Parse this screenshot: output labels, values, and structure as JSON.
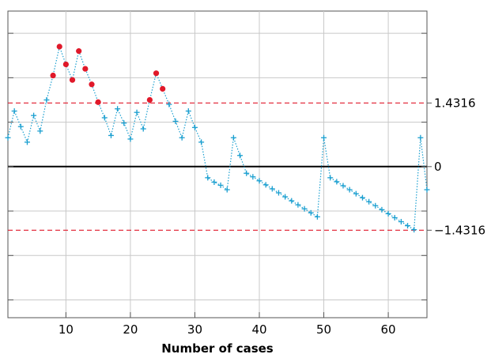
{
  "chart_data": {
    "type": "scatter",
    "title": "",
    "xlabel": "Number of cases",
    "ylabel": "",
    "xlim": [
      1,
      66
    ],
    "ylim": [
      -3.4,
      3.5
    ],
    "grid": true,
    "x_ticks": [
      10,
      20,
      30,
      40,
      50,
      60
    ],
    "x_tick_labels": [
      "10",
      "20",
      "30",
      "40",
      "50",
      "60"
    ],
    "reference_lines": [
      {
        "value": 1.4316,
        "label": "1.4316",
        "style": "dashed",
        "color": "#e0192a"
      },
      {
        "value": 0,
        "label": "0",
        "style": "solid",
        "color": "#000000"
      },
      {
        "value": -1.4316,
        "label": "−1.4316",
        "style": "dashed",
        "color": "#e0192a"
      }
    ],
    "series": [
      {
        "color": "#1a9fd0",
        "marker": "plus",
        "line_style": "dotted",
        "x": [
          1,
          2,
          3,
          4,
          5,
          6,
          7,
          8,
          9,
          10,
          11,
          12,
          13,
          14,
          15,
          16,
          17,
          18,
          19,
          20,
          21,
          22,
          23,
          24,
          25,
          26,
          27,
          28,
          29,
          30,
          31,
          32,
          33,
          34,
          35,
          36,
          37,
          38,
          39,
          40,
          41,
          42,
          43,
          44,
          45,
          46,
          47,
          48,
          49,
          50,
          51,
          52,
          53,
          54,
          55,
          56,
          57,
          58,
          59,
          60,
          61,
          62,
          63,
          64,
          65,
          66
        ],
        "y": [
          0.65,
          1.25,
          0.9,
          0.55,
          1.15,
          0.8,
          1.5,
          2.05,
          2.7,
          2.3,
          1.95,
          2.6,
          2.2,
          1.85,
          1.45,
          1.1,
          0.7,
          1.3,
          0.98,
          0.62,
          1.22,
          0.85,
          1.5,
          2.1,
          1.75,
          1.4,
          1.02,
          0.65,
          1.25,
          0.88,
          0.55,
          -0.25,
          -0.35,
          -0.42,
          -0.52,
          0.65,
          0.25,
          -0.15,
          -0.23,
          -0.32,
          -0.41,
          -0.5,
          -0.59,
          -0.68,
          -0.77,
          -0.86,
          -0.95,
          -1.04,
          -1.13,
          0.65,
          -0.25,
          -0.34,
          -0.43,
          -0.52,
          -0.61,
          -0.7,
          -0.79,
          -0.88,
          -0.97,
          -1.06,
          -1.15,
          -1.24,
          -1.33,
          -1.42,
          0.65,
          -0.52
        ],
        "flagged_out_of_control": [
          8,
          9,
          10,
          11,
          12,
          13,
          14,
          15,
          23,
          24,
          25
        ],
        "flagged_color": "#e0192a"
      }
    ],
    "legend": "none"
  }
}
